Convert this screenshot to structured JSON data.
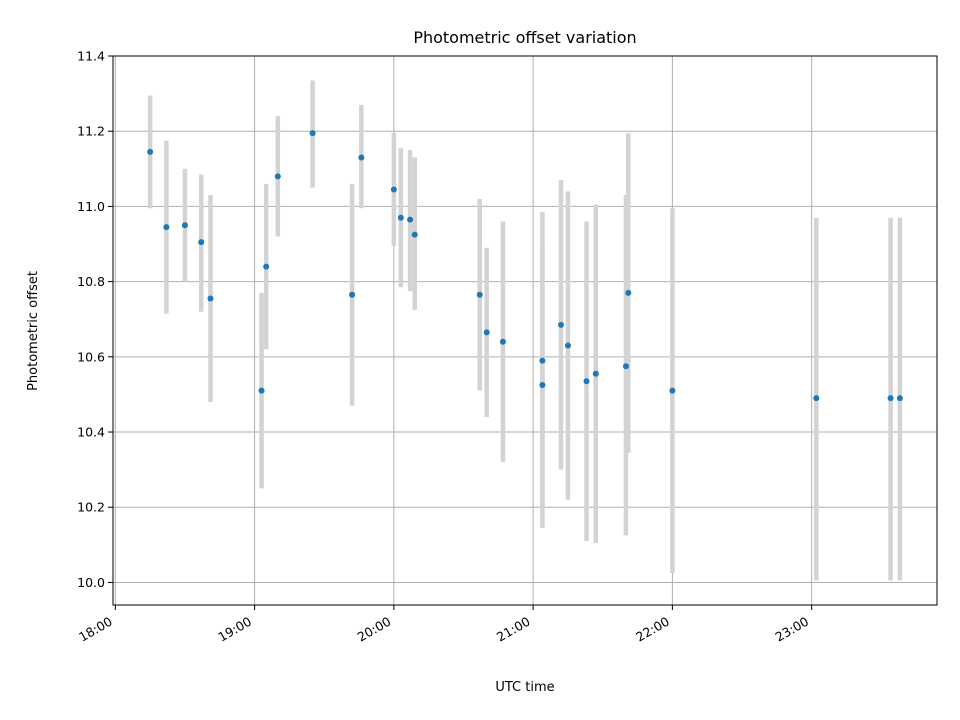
{
  "chart_data": {
    "type": "scatter",
    "title": "Photometric offset variation",
    "xlabel": "UTC time",
    "ylabel": "Photometric offset",
    "xlim": [
      "17:59",
      "23:54"
    ],
    "ylim": [
      9.94,
      11.4
    ],
    "x_ticks": [
      "18:00",
      "19:00",
      "20:00",
      "21:00",
      "22:00",
      "23:00"
    ],
    "y_ticks": [
      "10.0",
      "10.2",
      "10.4",
      "10.6",
      "10.8",
      "11.0",
      "11.2",
      "11.4"
    ],
    "grid": true,
    "colors": {
      "marker": "#1f77b4",
      "errorbar": "#d3d3d3",
      "grid": "#b0b0b0"
    },
    "points": [
      {
        "x": "18:15",
        "y": 11.145,
        "y_low": 10.995,
        "y_high": 11.295
      },
      {
        "x": "18:22",
        "y": 10.945,
        "y_low": 10.715,
        "y_high": 11.175
      },
      {
        "x": "18:30",
        "y": 10.95,
        "y_low": 10.8,
        "y_high": 11.1
      },
      {
        "x": "18:37",
        "y": 10.905,
        "y_low": 10.72,
        "y_high": 11.085
      },
      {
        "x": "18:41",
        "y": 10.755,
        "y_low": 10.48,
        "y_high": 11.03
      },
      {
        "x": "19:03",
        "y": 10.51,
        "y_low": 10.25,
        "y_high": 10.77
      },
      {
        "x": "19:05",
        "y": 10.84,
        "y_low": 10.62,
        "y_high": 11.06
      },
      {
        "x": "19:10",
        "y": 11.08,
        "y_low": 10.92,
        "y_high": 11.24
      },
      {
        "x": "19:25",
        "y": 11.195,
        "y_low": 11.05,
        "y_high": 11.335
      },
      {
        "x": "19:42",
        "y": 10.765,
        "y_low": 10.47,
        "y_high": 11.06
      },
      {
        "x": "19:46",
        "y": 11.13,
        "y_low": 10.995,
        "y_high": 11.27
      },
      {
        "x": "20:00",
        "y": 11.045,
        "y_low": 10.895,
        "y_high": 11.195
      },
      {
        "x": "20:03",
        "y": 10.97,
        "y_low": 10.785,
        "y_high": 11.155
      },
      {
        "x": "20:07",
        "y": 10.965,
        "y_low": 10.775,
        "y_high": 11.15
      },
      {
        "x": "20:09",
        "y": 10.925,
        "y_low": 10.725,
        "y_high": 11.13
      },
      {
        "x": "20:37",
        "y": 10.765,
        "y_low": 10.51,
        "y_high": 11.02
      },
      {
        "x": "20:40",
        "y": 10.665,
        "y_low": 10.44,
        "y_high": 10.89
      },
      {
        "x": "20:47",
        "y": 10.64,
        "y_low": 10.32,
        "y_high": 10.96
      },
      {
        "x": "21:04",
        "y": 10.59,
        "y_low": 10.195,
        "y_high": 10.985
      },
      {
        "x": "21:04",
        "y": 10.525,
        "y_low": 10.145,
        "y_high": 10.905
      },
      {
        "x": "21:12",
        "y": 10.685,
        "y_low": 10.3,
        "y_high": 11.07
      },
      {
        "x": "21:15",
        "y": 10.63,
        "y_low": 10.22,
        "y_high": 11.04
      },
      {
        "x": "21:23",
        "y": 10.535,
        "y_low": 10.11,
        "y_high": 10.96
      },
      {
        "x": "21:27",
        "y": 10.555,
        "y_low": 10.105,
        "y_high": 11.005
      },
      {
        "x": "21:40",
        "y": 10.575,
        "y_low": 10.125,
        "y_high": 11.03
      },
      {
        "x": "21:41",
        "y": 10.77,
        "y_low": 10.345,
        "y_high": 11.195
      },
      {
        "x": "22:00",
        "y": 10.51,
        "y_low": 10.025,
        "y_high": 10.995
      },
      {
        "x": "23:02",
        "y": 10.49,
        "y_low": 10.005,
        "y_high": 10.97
      },
      {
        "x": "23:34",
        "y": 10.49,
        "y_low": 10.005,
        "y_high": 10.97
      },
      {
        "x": "23:38",
        "y": 10.49,
        "y_low": 10.005,
        "y_high": 10.97
      }
    ]
  }
}
